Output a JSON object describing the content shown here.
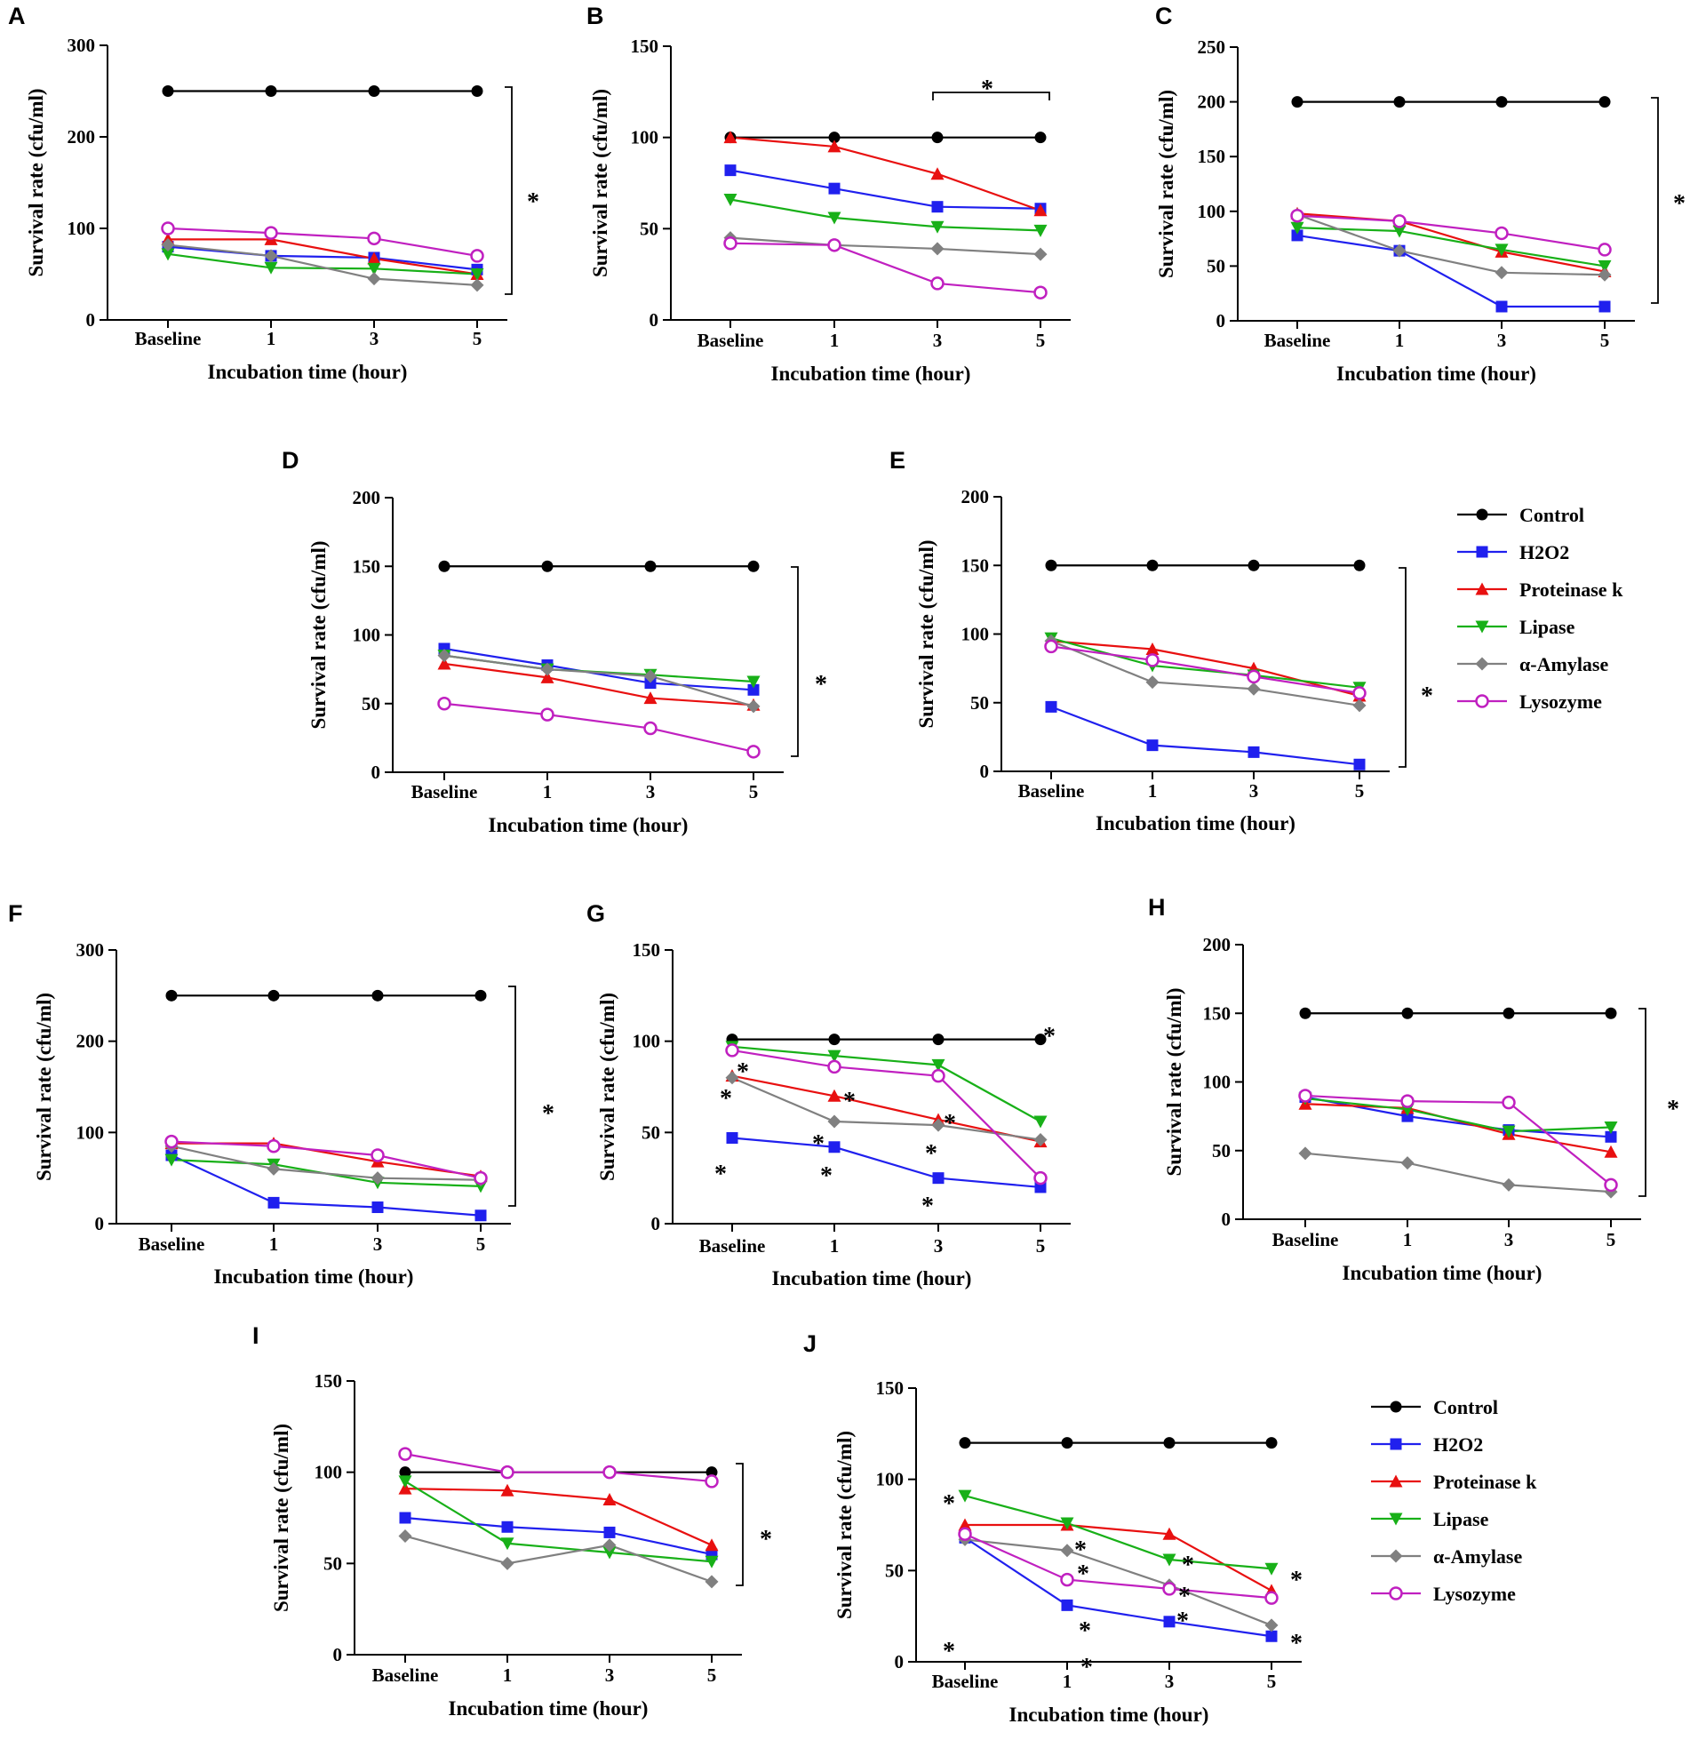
{
  "figure": {
    "series_names": [
      "Control",
      "H2O2",
      "Proteinase k",
      "Lipase",
      "α-Amylase",
      "Lysozyme"
    ],
    "series_colors": {
      "Control": "#000000",
      "H2O2": "#2020ee",
      "Proteinase k": "#e81010",
      "Lipase": "#18b018",
      "α-Amylase": "#808080",
      "Lysozyme": "#c020c0"
    },
    "legends": [
      {
        "id": "legend-1",
        "entries": [
          "Control",
          "H2O2",
          "Proteinase k",
          "Lipase",
          "α-Amylase",
          "Lysozyme"
        ]
      },
      {
        "id": "legend-2",
        "entries": [
          "Control",
          "H2O2",
          "Proteinase k",
          "Lipase",
          "α-Amylase",
          "Lysozyme"
        ]
      }
    ]
  },
  "chart_data": [
    {
      "panel": "A",
      "type": "line",
      "x": [
        "Baseline",
        "1",
        "3",
        "5"
      ],
      "xlabel": "Incubation time (hour)",
      "ylabel": "Survival rate (cfu/ml)",
      "ylim": [
        0,
        300
      ],
      "yticks": [
        0,
        100,
        200,
        300
      ],
      "series": [
        {
          "name": "Control",
          "values": [
            250,
            250,
            250,
            250
          ]
        },
        {
          "name": "H2O2",
          "values": [
            80,
            70,
            68,
            55
          ]
        },
        {
          "name": "Proteinase k",
          "values": [
            88,
            88,
            67,
            50
          ]
        },
        {
          "name": "Lipase",
          "values": [
            72,
            57,
            56,
            50
          ]
        },
        {
          "name": "α-Amylase",
          "values": [
            82,
            70,
            45,
            38
          ]
        },
        {
          "name": "Lysozyme",
          "values": [
            100,
            95,
            89,
            70
          ]
        }
      ],
      "annotations": [
        "*"
      ]
    },
    {
      "panel": "B",
      "type": "line",
      "x": [
        "Baseline",
        "1",
        "3",
        "5"
      ],
      "xlabel": "Incubation time (hour)",
      "ylabel": "Survival rate (cfu/ml)",
      "ylim": [
        0,
        150
      ],
      "yticks": [
        0,
        50,
        100,
        150
      ],
      "series": [
        {
          "name": "Control",
          "values": [
            100,
            100,
            100,
            100
          ]
        },
        {
          "name": "H2O2",
          "values": [
            82,
            72,
            62,
            61
          ]
        },
        {
          "name": "Proteinase k",
          "values": [
            100,
            95,
            80,
            60
          ]
        },
        {
          "name": "Lipase",
          "values": [
            66,
            56,
            51,
            49
          ]
        },
        {
          "name": "α-Amylase",
          "values": [
            45,
            41,
            39,
            36
          ]
        },
        {
          "name": "Lysozyme",
          "values": [
            42,
            41,
            20,
            15
          ]
        }
      ],
      "annotations": [
        "*"
      ]
    },
    {
      "panel": "C",
      "type": "line",
      "x": [
        "Baseline",
        "1",
        "3",
        "5"
      ],
      "xlabel": "Incubation time (hour)",
      "ylabel": "Survival rate (cfu/ml)",
      "ylim": [
        0,
        250
      ],
      "yticks": [
        0,
        50,
        100,
        150,
        200,
        250
      ],
      "series": [
        {
          "name": "Control",
          "values": [
            200,
            200,
            200,
            200
          ]
        },
        {
          "name": "H2O2",
          "values": [
            78,
            64,
            13,
            13
          ]
        },
        {
          "name": "Proteinase k",
          "values": [
            98,
            91,
            63,
            45
          ]
        },
        {
          "name": "Lipase",
          "values": [
            85,
            82,
            65,
            50
          ]
        },
        {
          "name": "α-Amylase",
          "values": [
            97,
            64,
            44,
            42
          ]
        },
        {
          "name": "Lysozyme",
          "values": [
            96,
            91,
            80,
            65
          ]
        }
      ],
      "annotations": [
        "*"
      ]
    },
    {
      "panel": "D",
      "type": "line",
      "x": [
        "Baseline",
        "1",
        "3",
        "5"
      ],
      "xlabel": "Incubation time (hour)",
      "ylabel": "Survival rate (cfu/ml)",
      "ylim": [
        0,
        200
      ],
      "yticks": [
        0,
        50,
        100,
        150,
        200
      ],
      "series": [
        {
          "name": "Control",
          "values": [
            150,
            150,
            150,
            150
          ]
        },
        {
          "name": "H2O2",
          "values": [
            90,
            78,
            65,
            60
          ]
        },
        {
          "name": "Proteinase k",
          "values": [
            79,
            69,
            54,
            49
          ]
        },
        {
          "name": "Lipase",
          "values": [
            85,
            75,
            71,
            66
          ]
        },
        {
          "name": "α-Amylase",
          "values": [
            85,
            75,
            70,
            48
          ]
        },
        {
          "name": "Lysozyme",
          "values": [
            50,
            42,
            32,
            15
          ]
        }
      ],
      "annotations": [
        "*"
      ]
    },
    {
      "panel": "E",
      "type": "line",
      "x": [
        "Baseline",
        "1",
        "3",
        "5"
      ],
      "xlabel": "Incubation time (hour)",
      "ylabel": "Survival rate (cfu/ml)",
      "ylim": [
        0,
        200
      ],
      "yticks": [
        0,
        50,
        100,
        150,
        200
      ],
      "series": [
        {
          "name": "Control",
          "values": [
            150,
            150,
            150,
            150
          ]
        },
        {
          "name": "H2O2",
          "values": [
            47,
            19,
            14,
            5
          ]
        },
        {
          "name": "Proteinase k",
          "values": [
            95,
            89,
            75,
            55
          ]
        },
        {
          "name": "Lipase",
          "values": [
            97,
            77,
            70,
            61
          ]
        },
        {
          "name": "α-Amylase",
          "values": [
            95,
            65,
            60,
            48
          ]
        },
        {
          "name": "Lysozyme",
          "values": [
            91,
            81,
            69,
            57
          ]
        }
      ],
      "annotations": [
        "*"
      ]
    },
    {
      "panel": "F",
      "type": "line",
      "x": [
        "Baseline",
        "1",
        "3",
        "5"
      ],
      "xlabel": "Incubation time (hour)",
      "ylabel": "Survival rate (cfu/ml)",
      "ylim": [
        0,
        300
      ],
      "yticks": [
        0,
        100,
        200,
        300
      ],
      "series": [
        {
          "name": "Control",
          "values": [
            250,
            250,
            250,
            250
          ]
        },
        {
          "name": "H2O2",
          "values": [
            75,
            23,
            18,
            9
          ]
        },
        {
          "name": "Proteinase k",
          "values": [
            88,
            88,
            68,
            52
          ]
        },
        {
          "name": "Lipase",
          "values": [
            70,
            65,
            45,
            41
          ]
        },
        {
          "name": "α-Amylase",
          "values": [
            85,
            60,
            50,
            48
          ]
        },
        {
          "name": "Lysozyme",
          "values": [
            90,
            85,
            75,
            50
          ]
        }
      ],
      "annotations": [
        "*"
      ]
    },
    {
      "panel": "G",
      "type": "line",
      "x": [
        "Baseline",
        "1",
        "3",
        "5"
      ],
      "xlabel": "Incubation time (hour)",
      "ylabel": "Survival rate (cfu/ml)",
      "ylim": [
        0,
        150
      ],
      "yticks": [
        0,
        50,
        100,
        150
      ],
      "series": [
        {
          "name": "Control",
          "values": [
            101,
            101,
            101,
            101
          ]
        },
        {
          "name": "H2O2",
          "values": [
            47,
            42,
            25,
            20
          ]
        },
        {
          "name": "Proteinase k",
          "values": [
            81,
            70,
            57,
            45
          ]
        },
        {
          "name": "Lipase",
          "values": [
            97,
            92,
            87,
            56
          ]
        },
        {
          "name": "α-Amylase",
          "values": [
            80,
            56,
            54,
            46
          ]
        },
        {
          "name": "Lysozyme",
          "values": [
            95,
            86,
            81,
            25
          ]
        }
      ],
      "annotations": [
        "*",
        "*",
        "*",
        "*",
        "*",
        "*",
        "*",
        "*",
        "*",
        "*"
      ]
    },
    {
      "panel": "H",
      "type": "line",
      "x": [
        "Baseline",
        "1",
        "3",
        "5"
      ],
      "xlabel": "Incubation time (hour)",
      "ylabel": "Survival rate (cfu/ml)",
      "ylim": [
        0,
        200
      ],
      "yticks": [
        0,
        50,
        100,
        150,
        200
      ],
      "series": [
        {
          "name": "Control",
          "values": [
            150,
            150,
            150,
            150
          ]
        },
        {
          "name": "H2O2",
          "values": [
            89,
            75,
            65,
            60
          ]
        },
        {
          "name": "Proteinase k",
          "values": [
            84,
            81,
            62,
            49
          ]
        },
        {
          "name": "Lipase",
          "values": [
            88,
            80,
            64,
            67
          ]
        },
        {
          "name": "α-Amylase",
          "values": [
            48,
            41,
            25,
            20
          ]
        },
        {
          "name": "Lysozyme",
          "values": [
            90,
            86,
            85,
            25
          ]
        }
      ],
      "annotations": [
        "*"
      ]
    },
    {
      "panel": "I",
      "type": "line",
      "x": [
        "Baseline",
        "1",
        "3",
        "5"
      ],
      "xlabel": "Incubation time (hour)",
      "ylabel": "Survival rate (cfu/ml)",
      "ylim": [
        0,
        150
      ],
      "yticks": [
        0,
        50,
        100,
        150
      ],
      "series": [
        {
          "name": "Control",
          "values": [
            100,
            100,
            100,
            100
          ]
        },
        {
          "name": "H2O2",
          "values": [
            75,
            70,
            67,
            55
          ]
        },
        {
          "name": "Proteinase k",
          "values": [
            91,
            90,
            85,
            60
          ]
        },
        {
          "name": "Lipase",
          "values": [
            95,
            61,
            56,
            51
          ]
        },
        {
          "name": "α-Amylase",
          "values": [
            65,
            50,
            60,
            40
          ]
        },
        {
          "name": "Lysozyme",
          "values": [
            110,
            100,
            100,
            95
          ]
        }
      ],
      "annotations": [
        "*"
      ]
    },
    {
      "panel": "J",
      "type": "line",
      "x": [
        "Baseline",
        "1",
        "3",
        "5"
      ],
      "xlabel": "Incubation time (hour)",
      "ylabel": "Survival rate (cfu/ml)",
      "ylim": [
        0,
        150
      ],
      "yticks": [
        0,
        50,
        100,
        150
      ],
      "series": [
        {
          "name": "Control",
          "values": [
            120,
            120,
            120,
            120
          ]
        },
        {
          "name": "H2O2",
          "values": [
            68,
            31,
            22,
            14
          ]
        },
        {
          "name": "Proteinase k",
          "values": [
            75,
            75,
            70,
            39
          ]
        },
        {
          "name": "Lipase",
          "values": [
            91,
            76,
            56,
            51
          ]
        },
        {
          "name": "α-Amylase",
          "values": [
            67,
            61,
            42,
            20
          ]
        },
        {
          "name": "Lysozyme",
          "values": [
            70,
            45,
            40,
            35
          ]
        }
      ],
      "annotations": [
        "*",
        "*",
        "*",
        "*",
        "*",
        "*",
        "*",
        "*",
        "*",
        "*",
        "*"
      ]
    }
  ]
}
